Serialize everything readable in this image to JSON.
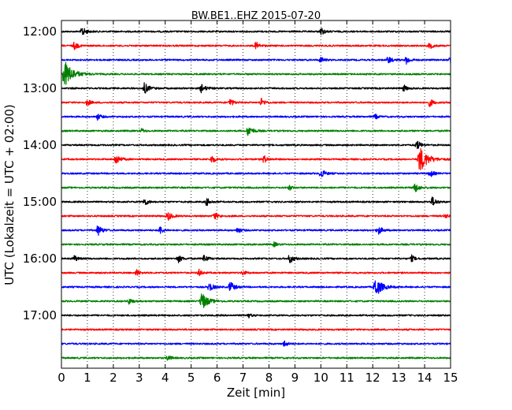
{
  "chart_data": {
    "type": "line",
    "title": "BW.BE1..EHZ 2015-07-20",
    "xlabel": "Zeit  [min]",
    "ylabel": "UTC (Lokalzeit = UTC + 02:00)",
    "xlim": [
      0,
      15
    ],
    "x_ticks": [
      "0",
      "1",
      "2",
      "3",
      "4",
      "5",
      "6",
      "7",
      "8",
      "9",
      "10",
      "11",
      "12",
      "13",
      "14",
      "15"
    ],
    "y_tick_labels": [
      "12:00",
      "13:00",
      "14:00",
      "15:00",
      "16:00",
      "17:00"
    ],
    "grid": "vertical dotted",
    "trace_colors": [
      "#000000",
      "#ff0000",
      "#0000ff",
      "#008000"
    ],
    "series": [
      {
        "start": "12:00",
        "events": [
          [
            0.8,
            6
          ],
          [
            10.0,
            5
          ]
        ]
      },
      {
        "start": "12:15",
        "events": [
          [
            0.5,
            5
          ],
          [
            7.5,
            5
          ],
          [
            14.2,
            4
          ]
        ]
      },
      {
        "start": "12:30",
        "events": [
          [
            10.0,
            4
          ],
          [
            12.6,
            5
          ],
          [
            13.3,
            5
          ],
          [
            15.0,
            5
          ]
        ]
      },
      {
        "start": "12:45",
        "events": [
          [
            0.1,
            18
          ]
        ]
      },
      {
        "start": "13:00",
        "events": [
          [
            3.2,
            7
          ],
          [
            5.4,
            6
          ],
          [
            13.2,
            4
          ]
        ]
      },
      {
        "start": "13:15",
        "events": [
          [
            1.0,
            4
          ],
          [
            6.5,
            5
          ],
          [
            7.7,
            5
          ],
          [
            14.2,
            5
          ]
        ]
      },
      {
        "start": "13:30",
        "events": [
          [
            1.4,
            4
          ],
          [
            12.1,
            3
          ]
        ]
      },
      {
        "start": "13:45",
        "events": [
          [
            3.1,
            3
          ],
          [
            7.2,
            7
          ]
        ]
      },
      {
        "start": "14:00",
        "events": [
          [
            13.7,
            6
          ]
        ]
      },
      {
        "start": "14:15",
        "events": [
          [
            2.1,
            7
          ],
          [
            5.8,
            5
          ],
          [
            7.8,
            5
          ],
          [
            13.8,
            17
          ]
        ]
      },
      {
        "start": "14:30",
        "events": [
          [
            10.0,
            6
          ],
          [
            14.2,
            5
          ]
        ]
      },
      {
        "start": "14:45",
        "events": [
          [
            8.8,
            3
          ],
          [
            13.6,
            7
          ]
        ]
      },
      {
        "start": "15:00",
        "events": [
          [
            3.2,
            5
          ],
          [
            5.6,
            5
          ],
          [
            14.3,
            6
          ]
        ]
      },
      {
        "start": "15:15",
        "events": [
          [
            4.1,
            6
          ],
          [
            5.9,
            5
          ],
          [
            14.8,
            3
          ]
        ]
      },
      {
        "start": "15:30",
        "events": [
          [
            1.4,
            7
          ],
          [
            3.8,
            5
          ],
          [
            6.8,
            4
          ],
          [
            12.2,
            6
          ]
        ]
      },
      {
        "start": "15:45",
        "events": [
          [
            8.2,
            3
          ]
        ]
      },
      {
        "start": "16:00",
        "events": [
          [
            0.5,
            4
          ],
          [
            4.5,
            5
          ],
          [
            5.5,
            5
          ],
          [
            8.8,
            6
          ],
          [
            13.5,
            4
          ]
        ]
      },
      {
        "start": "16:15",
        "events": [
          [
            2.9,
            4
          ],
          [
            5.3,
            4
          ],
          [
            7.0,
            3
          ]
        ]
      },
      {
        "start": "16:30",
        "events": [
          [
            5.7,
            6
          ],
          [
            6.5,
            7
          ],
          [
            12.1,
            13
          ]
        ]
      },
      {
        "start": "16:45",
        "events": [
          [
            2.6,
            4
          ],
          [
            5.4,
            12
          ]
        ]
      },
      {
        "start": "17:00",
        "events": [
          [
            7.2,
            3
          ]
        ]
      },
      {
        "start": "17:15",
        "events": []
      },
      {
        "start": "17:30",
        "events": [
          [
            8.6,
            4
          ]
        ]
      },
      {
        "start": "17:45",
        "events": [
          [
            4.1,
            4
          ]
        ]
      }
    ]
  }
}
